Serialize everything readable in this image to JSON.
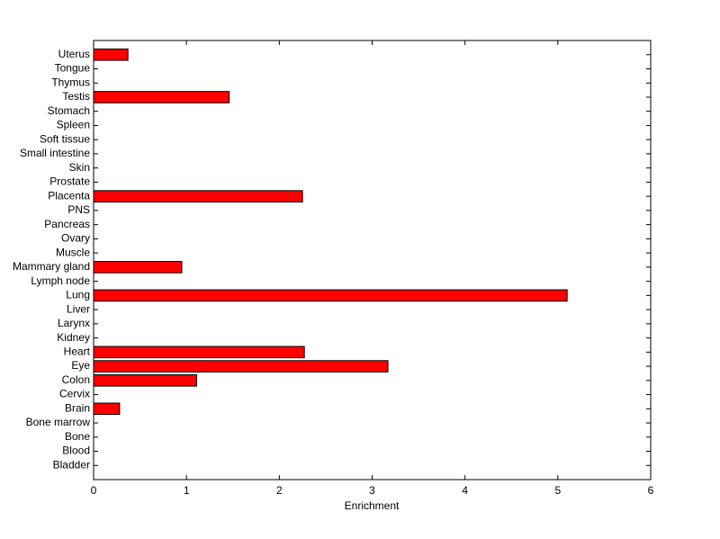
{
  "chart_data": {
    "type": "barh",
    "x_label": "Enrichment",
    "categories": [
      "Bladder",
      "Blood",
      "Bone",
      "Bone marrow",
      "Brain",
      "Cervix",
      "Colon",
      "Eye",
      "Heart",
      "Kidney",
      "Larynx",
      "Liver",
      "Lung",
      "Lymph node",
      "Mammary gland",
      "Muscle",
      "Ovary",
      "Pancreas",
      "PNS",
      "Placenta",
      "Prostate",
      "Skin",
      "Small intestine",
      "Soft tissue",
      "Spleen",
      "Stomach",
      "Testis",
      "Thymus",
      "Tongue",
      "Uterus"
    ],
    "values": [
      0,
      0,
      0,
      0,
      0.28,
      0,
      1.11,
      3.17,
      2.27,
      0,
      0,
      0,
      5.1,
      0,
      0.95,
      0,
      0,
      0,
      0,
      2.25,
      0,
      0,
      0,
      0,
      0,
      0,
      1.46,
      0,
      0,
      0.37
    ],
    "color": "#ff0000",
    "xlim": [
      0,
      6
    ],
    "xticks": [
      0,
      1,
      2,
      3,
      4,
      5,
      6
    ]
  }
}
